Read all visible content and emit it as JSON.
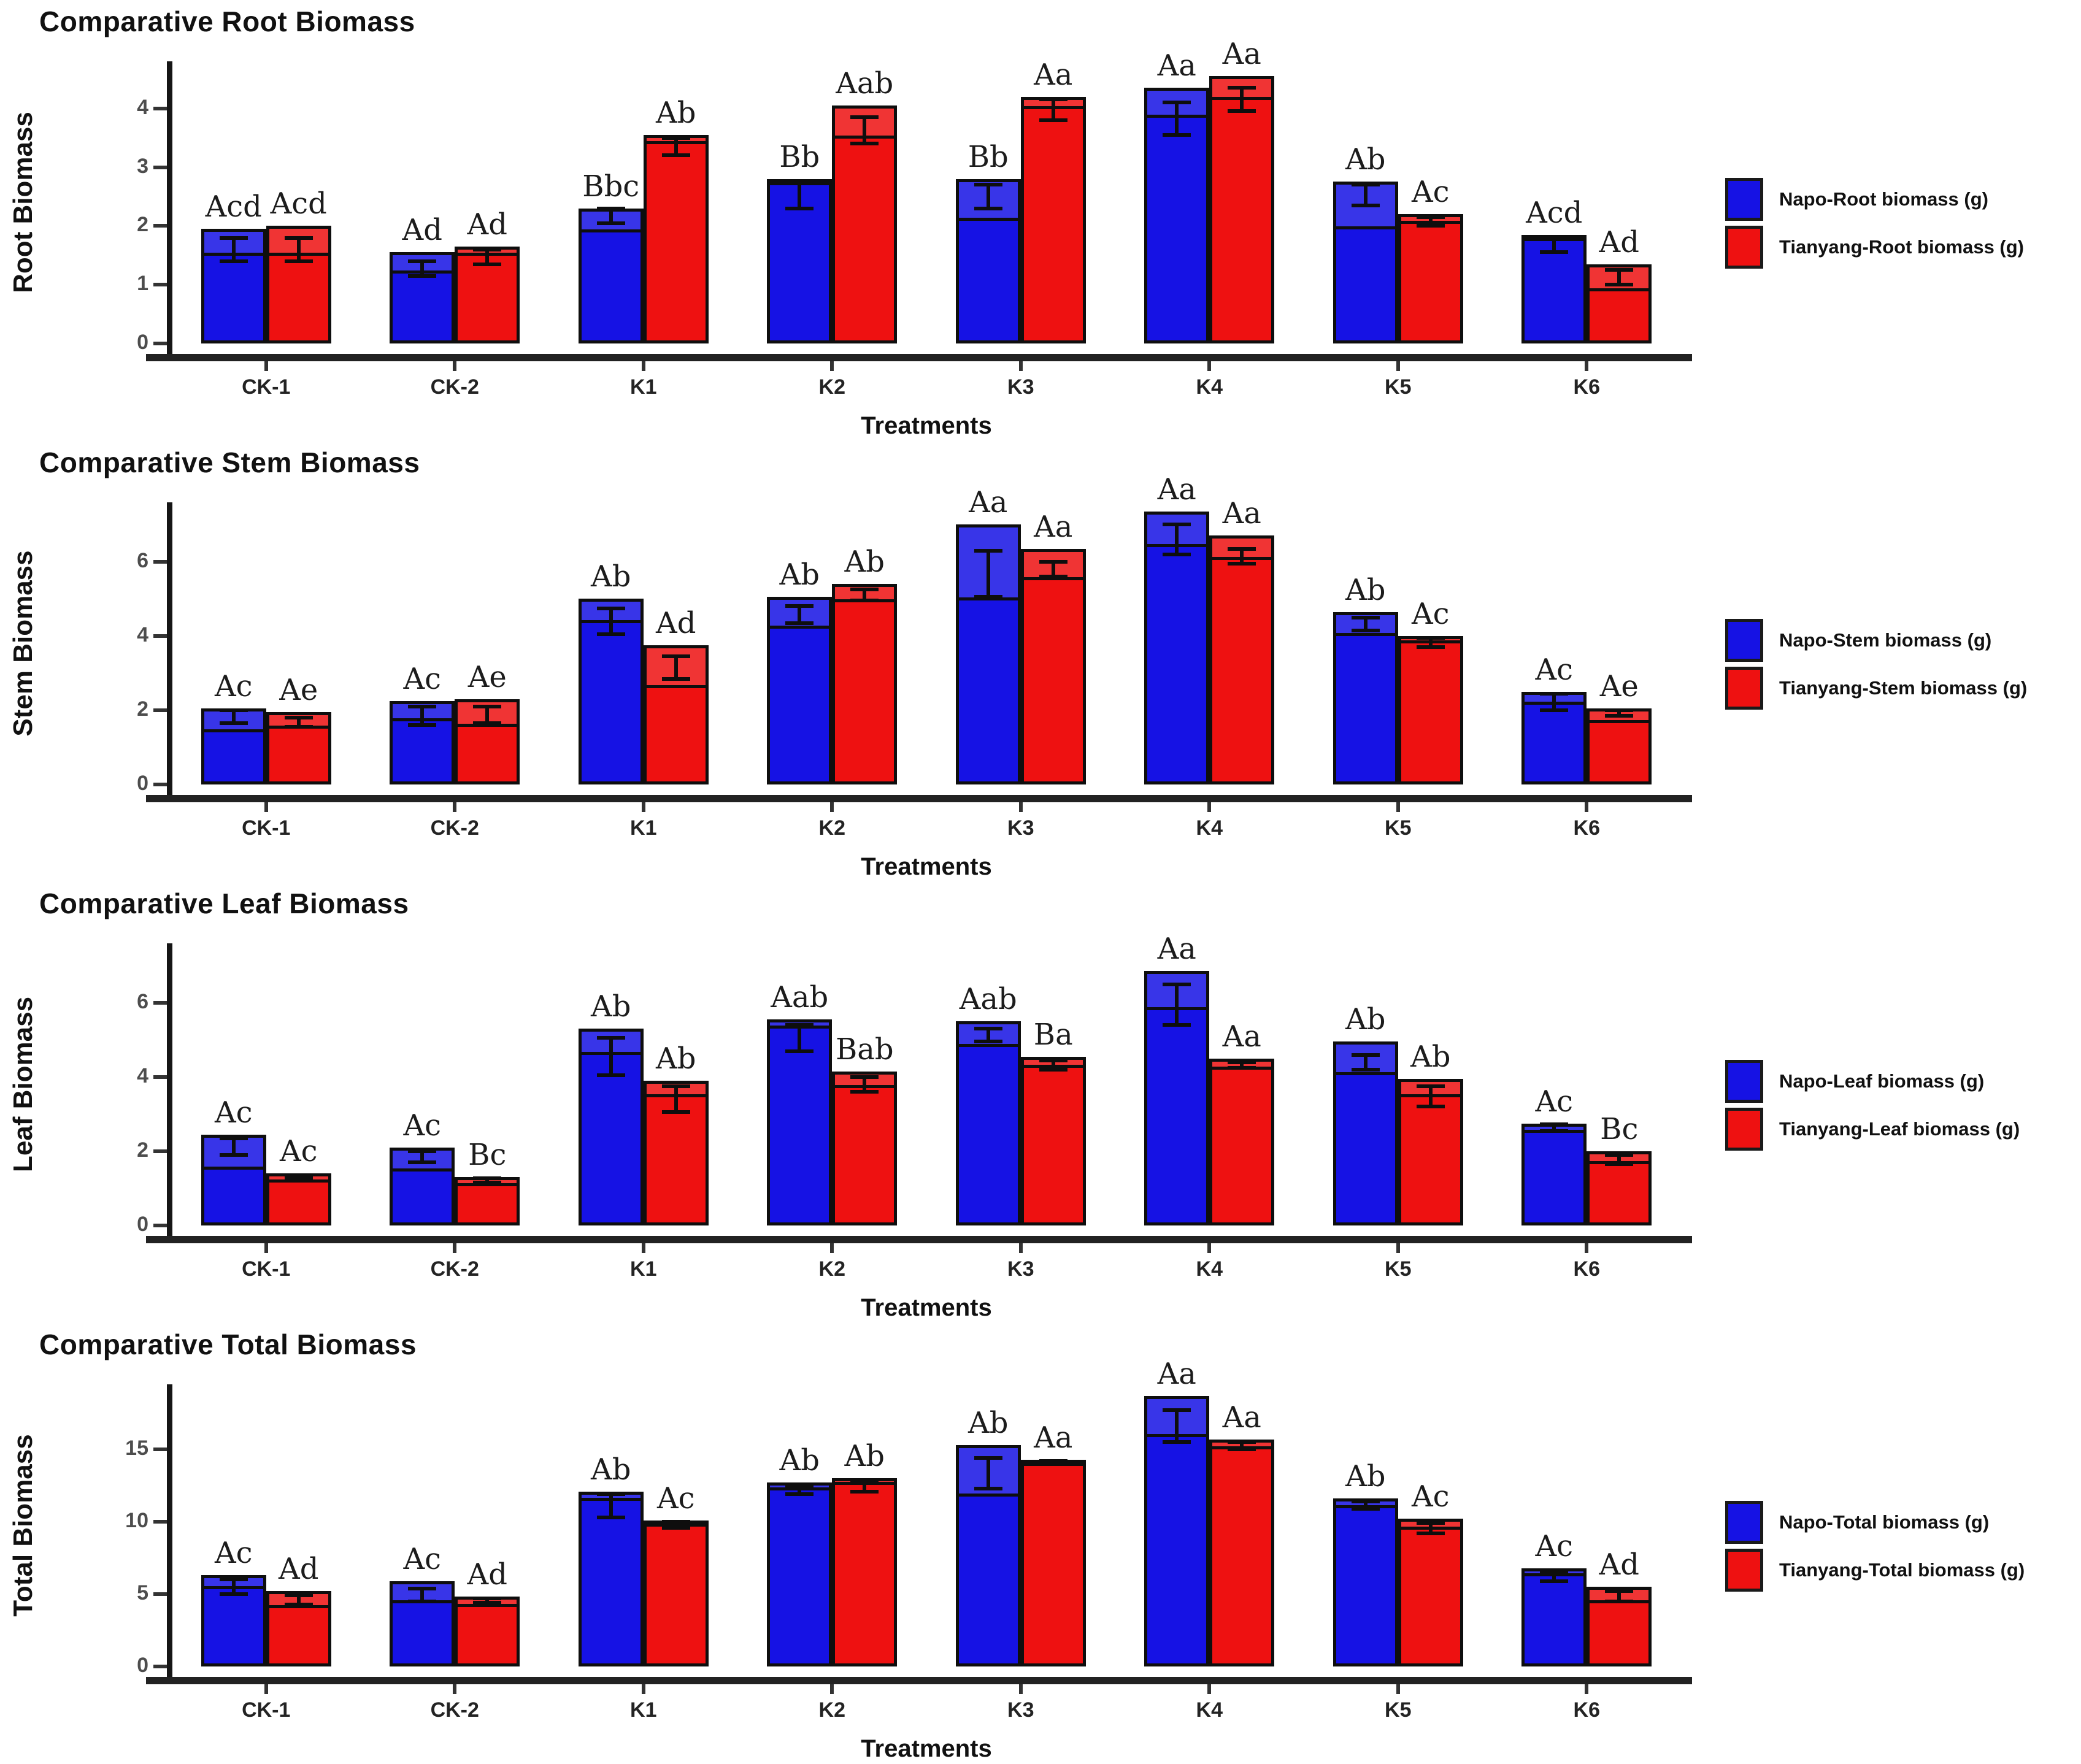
{
  "figure": {
    "x_categories": [
      "CK-1",
      "CK-2",
      "K1",
      "K2",
      "K3",
      "K4",
      "K5",
      "K6"
    ],
    "xlabel": "Treatments",
    "colors": {
      "napo": "#1612e4",
      "tianyang": "#ee1111",
      "axis": "#1a1a1a",
      "tick_label": "#4d4d4d"
    }
  },
  "chart_data": [
    {
      "type": "bar",
      "title": "Comparative Root Biomass",
      "xlabel": "Treatments",
      "ylabel": "Root Biomass",
      "categories": [
        "CK-1",
        "CK-2",
        "K1",
        "K2",
        "K3",
        "K4",
        "K5",
        "K6"
      ],
      "yticks": [
        0,
        1,
        2,
        3,
        4
      ],
      "ylim": [
        0,
        4.8
      ],
      "grid": false,
      "legend_position": "right",
      "legend": [
        "Napo-Root biomass (g)",
        "Tianyang-Root biomass (g)"
      ],
      "series": [
        {
          "name": "Napo-Root biomass (g)",
          "color": "#1612e4",
          "values": [
            1.95,
            1.55,
            2.3,
            2.8,
            2.8,
            4.35,
            2.75,
            1.85
          ],
          "letters": [
            "Acd",
            "Ad",
            "Bbc",
            "Bb",
            "Bb",
            "Aa",
            "Ab",
            "Acd"
          ],
          "line": [
            1.55,
            1.25,
            1.95,
            2.75,
            2.15,
            3.9,
            2.0,
            1.8
          ],
          "err_low": [
            1.4,
            1.15,
            2.05,
            2.3,
            2.3,
            3.55,
            2.35,
            1.55
          ],
          "err_high": [
            1.8,
            1.4,
            2.3,
            2.75,
            2.7,
            4.1,
            2.7,
            1.8
          ]
        },
        {
          "name": "Tianyang-Root biomass (g)",
          "color": "#ee1111",
          "values": [
            2.0,
            1.65,
            3.55,
            4.05,
            4.2,
            4.55,
            2.2,
            1.35
          ],
          "letters": [
            "Acd",
            "Ad",
            "Ab",
            "Aab",
            "Aa",
            "Aa",
            "Ac",
            "Ad"
          ],
          "line": [
            1.55,
            1.55,
            3.45,
            3.55,
            4.05,
            4.2,
            2.1,
            0.95
          ],
          "err_low": [
            1.4,
            1.35,
            3.2,
            3.4,
            3.8,
            3.95,
            2.0,
            1.0
          ],
          "err_high": [
            1.8,
            1.6,
            3.5,
            3.85,
            4.15,
            4.35,
            2.15,
            1.25
          ]
        }
      ]
    },
    {
      "type": "bar",
      "title": "Comparative Stem Biomass",
      "xlabel": "Treatments",
      "ylabel": "Stem Biomass",
      "categories": [
        "CK-1",
        "CK-2",
        "K1",
        "K2",
        "K3",
        "K4",
        "K5",
        "K6"
      ],
      "yticks": [
        0,
        2,
        4,
        6
      ],
      "ylim": [
        0,
        7.6
      ],
      "grid": false,
      "legend_position": "right",
      "legend": [
        "Napo-Stem biomass (g)",
        "Tianyang-Stem biomass (g)"
      ],
      "series": [
        {
          "name": "Napo-Stem biomass (g)",
          "color": "#1612e4",
          "values": [
            2.05,
            2.25,
            5.0,
            5.05,
            7.0,
            7.35,
            4.65,
            2.5
          ],
          "letters": [
            "Ac",
            "Ac",
            "Ab",
            "Ab",
            "Aa",
            "Aa",
            "Ab",
            "Ac"
          ],
          "line": [
            1.5,
            1.8,
            4.45,
            4.3,
            5.05,
            6.5,
            4.1,
            2.25
          ],
          "err_low": [
            1.65,
            1.6,
            4.05,
            4.35,
            5.05,
            6.2,
            4.15,
            2.0
          ],
          "err_high": [
            2.0,
            2.1,
            4.75,
            4.8,
            6.3,
            7.0,
            4.5,
            2.45
          ]
        },
        {
          "name": "Tianyang-Stem biomass (g)",
          "color": "#ee1111",
          "values": [
            1.95,
            2.3,
            3.75,
            5.4,
            6.35,
            6.7,
            4.0,
            2.05
          ],
          "letters": [
            "Ae",
            "Ae",
            "Ad",
            "Ab",
            "Aa",
            "Aa",
            "Ac",
            "Ae"
          ],
          "line": [
            1.6,
            1.65,
            2.7,
            5.0,
            5.6,
            6.15,
            3.9,
            1.75
          ],
          "err_low": [
            1.55,
            1.65,
            2.85,
            4.95,
            5.6,
            5.95,
            3.7,
            1.85
          ],
          "err_high": [
            1.8,
            2.1,
            3.45,
            5.25,
            6.0,
            6.35,
            3.95,
            2.0
          ]
        }
      ]
    },
    {
      "type": "bar",
      "title": "Comparative Leaf Biomass",
      "xlabel": "Treatments",
      "ylabel": "Leaf Biomass",
      "categories": [
        "CK-1",
        "CK-2",
        "K1",
        "K2",
        "K3",
        "K4",
        "K5",
        "K6"
      ],
      "yticks": [
        0,
        2,
        4,
        6
      ],
      "ylim": [
        0,
        7.6
      ],
      "grid": false,
      "legend_position": "right",
      "legend": [
        "Napo-Leaf biomass (g)",
        "Tianyang-Leaf biomass (g)"
      ],
      "series": [
        {
          "name": "Napo-Leaf biomass (g)",
          "color": "#1612e4",
          "values": [
            2.45,
            2.1,
            5.3,
            5.55,
            5.5,
            6.85,
            4.95,
            2.75
          ],
          "letters": [
            "Ac",
            "Ac",
            "Ab",
            "Aab",
            "Aab",
            "Aa",
            "Ab",
            "Ac"
          ],
          "line": [
            1.6,
            1.55,
            4.7,
            5.4,
            4.9,
            5.9,
            4.15,
            2.6
          ],
          "err_low": [
            1.9,
            1.7,
            4.05,
            4.7,
            4.95,
            5.4,
            4.2,
            2.55
          ],
          "err_high": [
            2.35,
            2.0,
            5.05,
            5.4,
            5.3,
            6.5,
            4.6,
            2.72
          ]
        },
        {
          "name": "Tianyang-Leaf biomass (g)",
          "color": "#ee1111",
          "values": [
            1.4,
            1.3,
            3.9,
            4.15,
            4.55,
            4.5,
            3.95,
            2.0
          ],
          "letters": [
            "Ac",
            "Bc",
            "Ab",
            "Bab",
            "Ba",
            "Aa",
            "Ab",
            "Bc"
          ],
          "line": [
            1.25,
            1.15,
            3.55,
            3.8,
            4.35,
            4.3,
            3.55,
            1.75
          ],
          "err_low": [
            1.25,
            1.15,
            3.05,
            3.6,
            4.2,
            4.25,
            3.2,
            1.65
          ],
          "err_high": [
            1.35,
            1.28,
            3.75,
            4.0,
            4.45,
            4.4,
            3.75,
            1.9
          ]
        }
      ]
    },
    {
      "type": "bar",
      "title": "Comparative Total Biomass",
      "xlabel": "Treatments",
      "ylabel": "Total Biomass",
      "categories": [
        "CK-1",
        "CK-2",
        "K1",
        "K2",
        "K3",
        "K4",
        "K5",
        "K6"
      ],
      "yticks": [
        0,
        5,
        10,
        15
      ],
      "ylim": [
        0,
        19.5
      ],
      "grid": false,
      "legend_position": "right",
      "legend": [
        "Napo-Total biomass (g)",
        "Tianyang-Total biomass (g)"
      ],
      "series": [
        {
          "name": "Napo-Total biomass (g)",
          "color": "#1612e4",
          "values": [
            6.3,
            5.9,
            12.1,
            12.7,
            15.3,
            18.7,
            11.6,
            6.8
          ],
          "letters": [
            "Ac",
            "Ac",
            "Ab",
            "Ab",
            "Ab",
            "Aa",
            "Ab",
            "Ac"
          ],
          "line": [
            5.6,
            4.6,
            11.7,
            12.4,
            12.0,
            16.1,
            11.2,
            6.5
          ],
          "err_low": [
            5.0,
            4.5,
            10.3,
            11.9,
            12.3,
            15.5,
            10.9,
            5.9
          ],
          "err_high": [
            6.0,
            5.4,
            11.9,
            12.5,
            14.4,
            17.7,
            11.4,
            6.5
          ]
        },
        {
          "name": "Tianyang-Total biomass (g)",
          "color": "#ee1111",
          "values": [
            5.2,
            4.85,
            10.1,
            13.0,
            14.3,
            15.7,
            10.2,
            5.5
          ],
          "letters": [
            "Ad",
            "Ad",
            "Ac",
            "Ab",
            "Aa",
            "Aa",
            "Ac",
            "Ad"
          ],
          "line": [
            4.3,
            4.35,
            9.9,
            12.8,
            14.1,
            15.25,
            9.7,
            4.6
          ],
          "err_low": [
            4.3,
            4.4,
            9.6,
            12.1,
            14.0,
            15.0,
            9.2,
            4.5
          ],
          "err_high": [
            4.9,
            4.7,
            10.0,
            12.8,
            14.2,
            15.5,
            9.9,
            5.2
          ]
        }
      ]
    }
  ]
}
